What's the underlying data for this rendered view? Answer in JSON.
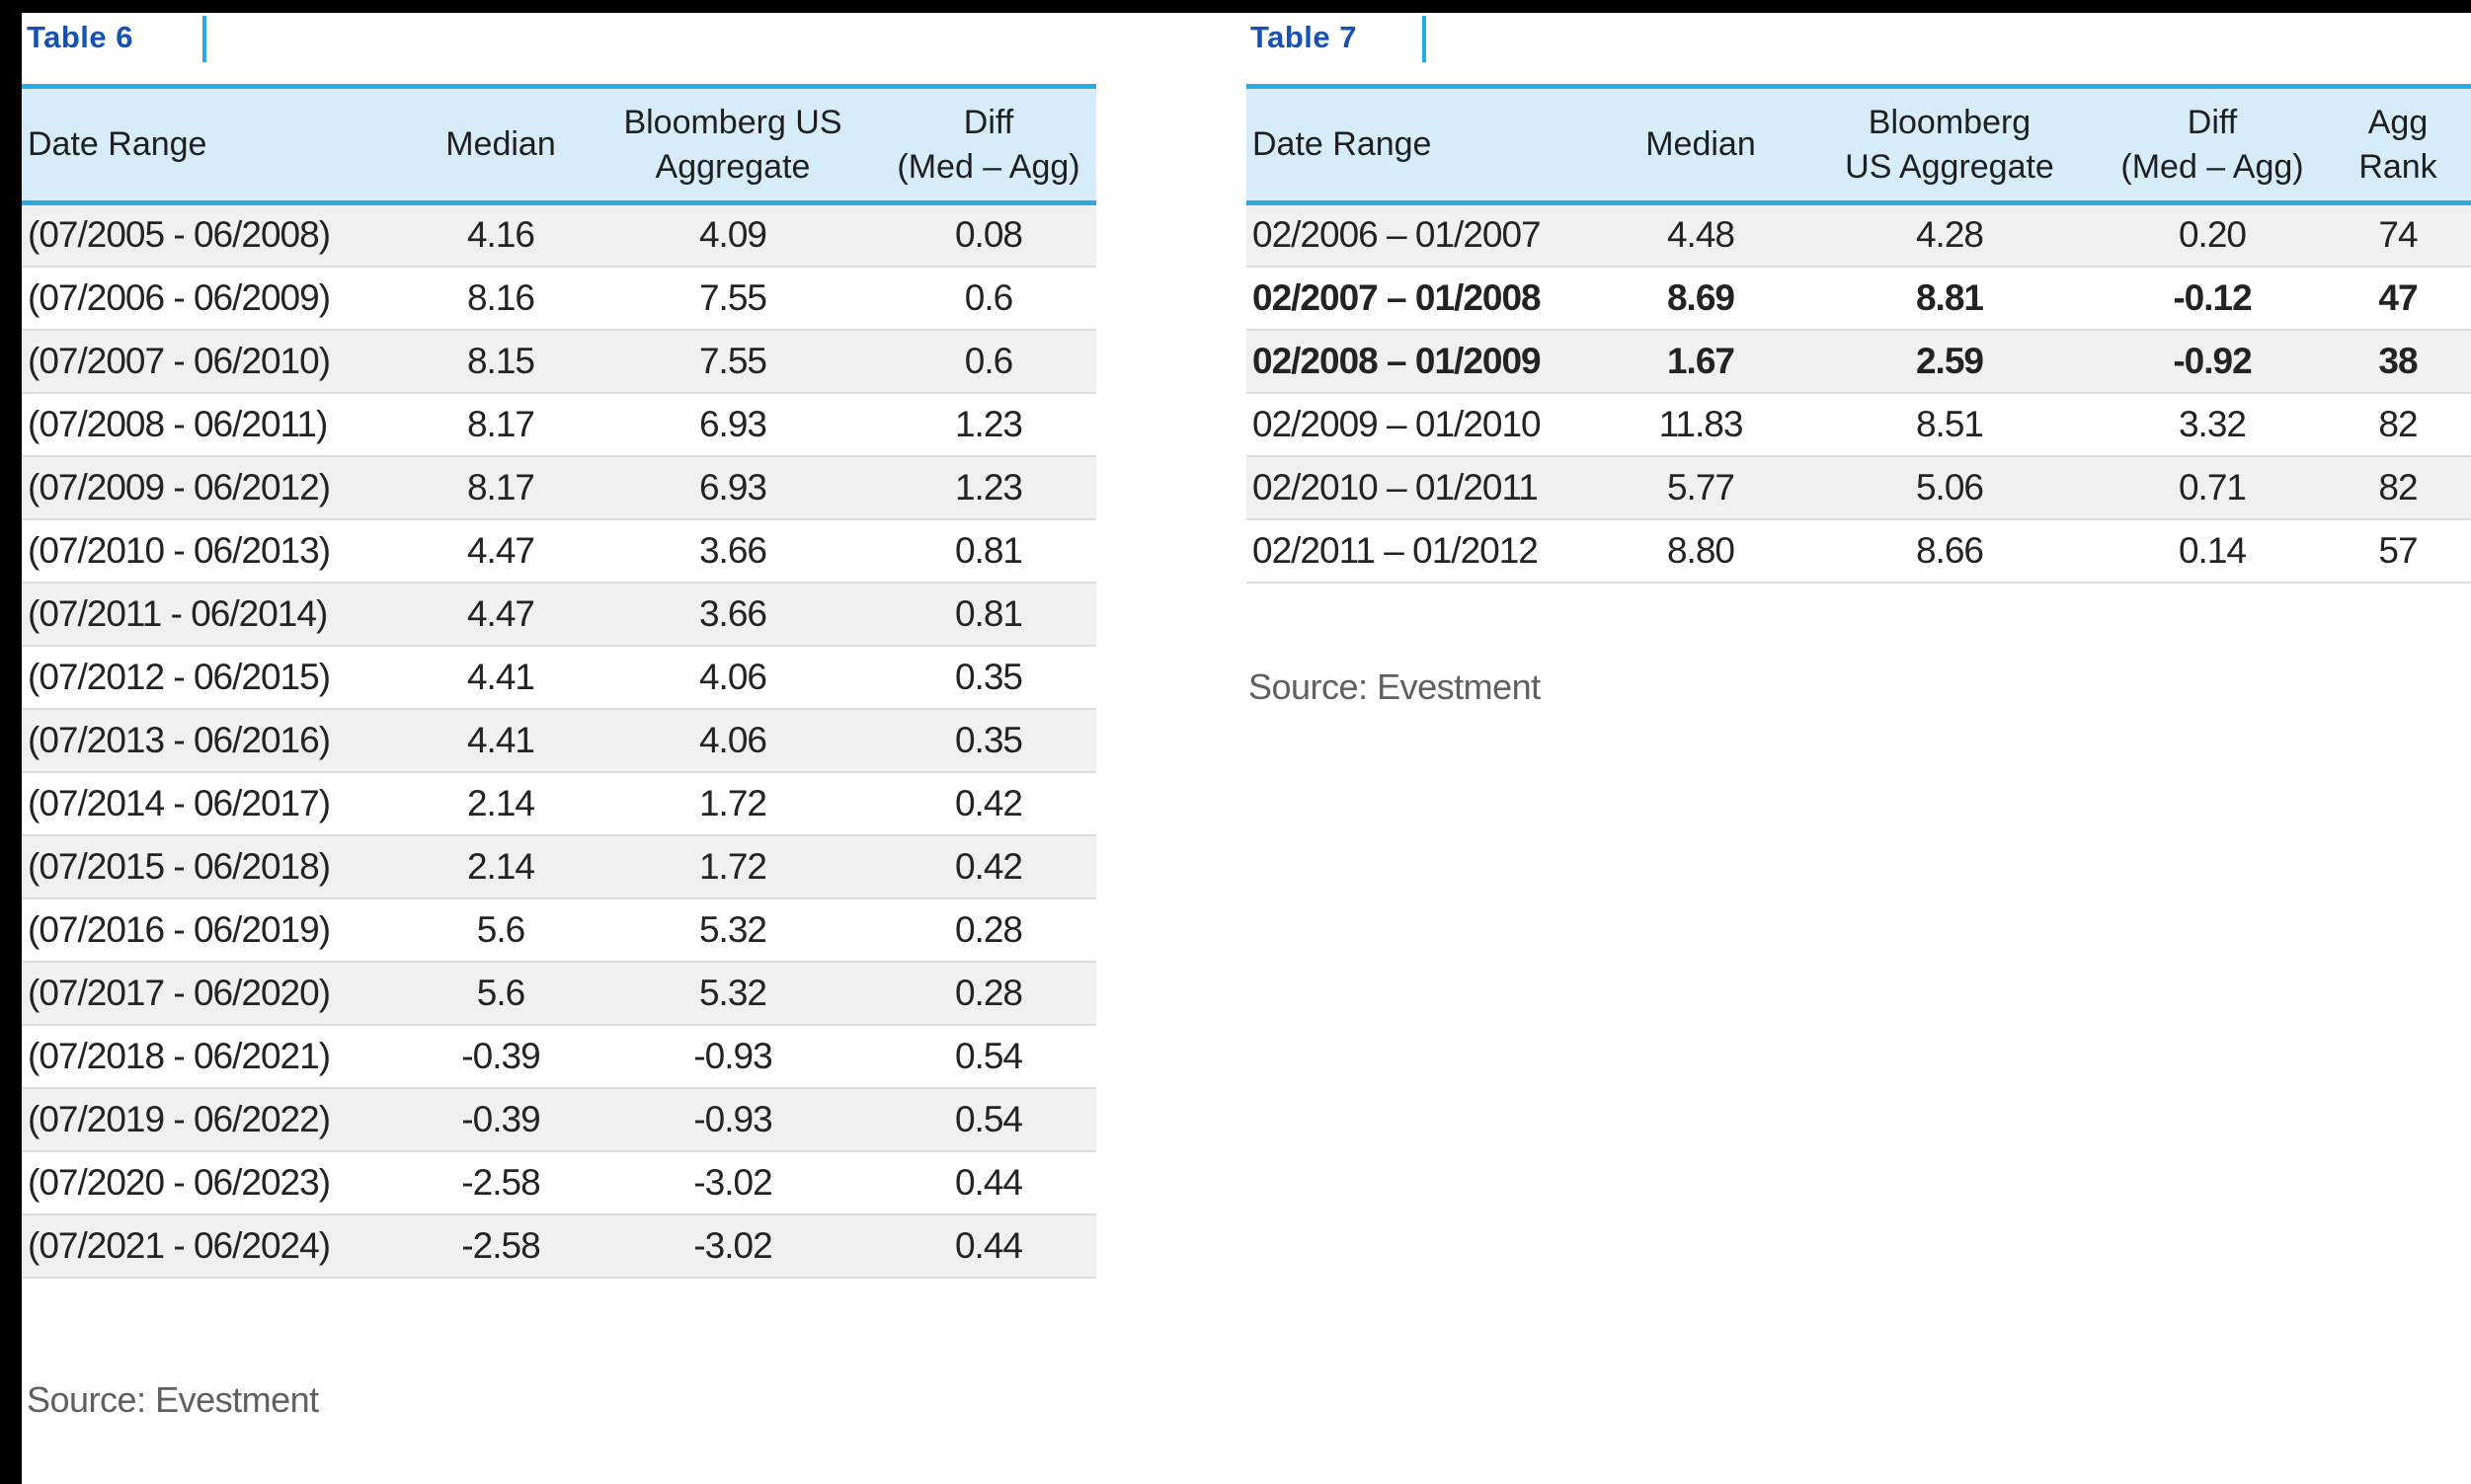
{
  "page": {
    "background": "#ffffff",
    "accent_blue": "#29abe2",
    "title_blue": "#1552b4",
    "header_bg": "#d7ecf9",
    "stripe_gray": "#f0f0f0"
  },
  "tables": [
    {
      "title": "Table 6",
      "source": "Source: Evestment",
      "columns": [
        "Date Range",
        "Median",
        "Bloomberg US\nAggregate",
        "Diff\n(Med – Agg)"
      ],
      "rows": [
        {
          "cells": [
            "(07/2005 - 06/2008)",
            "4.16",
            "4.09",
            "0.08"
          ],
          "bold": false
        },
        {
          "cells": [
            "(07/2006 - 06/2009)",
            "8.16",
            "7.55",
            "0.6"
          ],
          "bold": false
        },
        {
          "cells": [
            "(07/2007 - 06/2010)",
            "8.15",
            "7.55",
            "0.6"
          ],
          "bold": false
        },
        {
          "cells": [
            "(07/2008 - 06/2011)",
            "8.17",
            "6.93",
            "1.23"
          ],
          "bold": false
        },
        {
          "cells": [
            "(07/2009 - 06/2012)",
            "8.17",
            "6.93",
            "1.23"
          ],
          "bold": false
        },
        {
          "cells": [
            "(07/2010 - 06/2013)",
            "4.47",
            "3.66",
            "0.81"
          ],
          "bold": false
        },
        {
          "cells": [
            "(07/2011 - 06/2014)",
            "4.47",
            "3.66",
            "0.81"
          ],
          "bold": false
        },
        {
          "cells": [
            "(07/2012 - 06/2015)",
            "4.41",
            "4.06",
            "0.35"
          ],
          "bold": false
        },
        {
          "cells": [
            "(07/2013 - 06/2016)",
            "4.41",
            "4.06",
            "0.35"
          ],
          "bold": false
        },
        {
          "cells": [
            "(07/2014 - 06/2017)",
            "2.14",
            "1.72",
            "0.42"
          ],
          "bold": false
        },
        {
          "cells": [
            "(07/2015 - 06/2018)",
            "2.14",
            "1.72",
            "0.42"
          ],
          "bold": false
        },
        {
          "cells": [
            "(07/2016 - 06/2019)",
            "5.6",
            "5.32",
            "0.28"
          ],
          "bold": false
        },
        {
          "cells": [
            "(07/2017 - 06/2020)",
            "5.6",
            "5.32",
            "0.28"
          ],
          "bold": false
        },
        {
          "cells": [
            "(07/2018 - 06/2021)",
            "-0.39",
            "-0.93",
            "0.54"
          ],
          "bold": false
        },
        {
          "cells": [
            "(07/2019 - 06/2022)",
            "-0.39",
            "-0.93",
            "0.54"
          ],
          "bold": false
        },
        {
          "cells": [
            "(07/2020 - 06/2023)",
            "-2.58",
            "-3.02",
            "0.44"
          ],
          "bold": false
        },
        {
          "cells": [
            "(07/2021 - 06/2024)",
            "-2.58",
            "-3.02",
            "0.44"
          ],
          "bold": false
        }
      ]
    },
    {
      "title": "Table 7",
      "source": "Source: Evestment",
      "columns": [
        "Date Range",
        "Median",
        "Bloomberg\nUS Aggregate",
        "Diff\n(Med – Agg)",
        "Agg\nRank"
      ],
      "rows": [
        {
          "cells": [
            "02/2006 – 01/2007",
            "4.48",
            "4.28",
            "0.20",
            "74"
          ],
          "bold": false
        },
        {
          "cells": [
            "02/2007 – 01/2008",
            "8.69",
            "8.81",
            "-0.12",
            "47"
          ],
          "bold": true
        },
        {
          "cells": [
            "02/2008 – 01/2009",
            "1.67",
            "2.59",
            "-0.92",
            "38"
          ],
          "bold": true
        },
        {
          "cells": [
            "02/2009 – 01/2010",
            "11.83",
            "8.51",
            "3.32",
            "82"
          ],
          "bold": false
        },
        {
          "cells": [
            "02/2010 – 01/2011",
            "5.77",
            "5.06",
            "0.71",
            "82"
          ],
          "bold": false
        },
        {
          "cells": [
            "02/2011 – 01/2012",
            "8.80",
            "8.66",
            "0.14",
            "57"
          ],
          "bold": false
        }
      ]
    }
  ]
}
